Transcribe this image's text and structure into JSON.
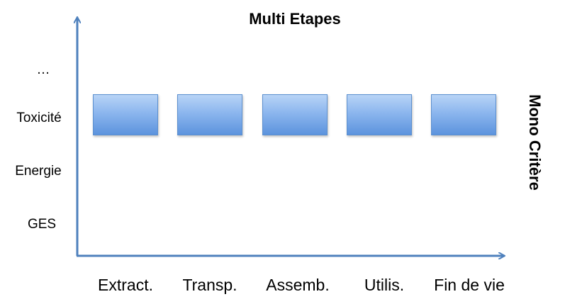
{
  "title": "Multi Etapes",
  "side_label": "Mono Critère",
  "criteria": [
    "…",
    "Toxicité",
    "Energie",
    "GES"
  ],
  "stages": [
    "Extract.",
    "Transp.",
    "Assemb.",
    "Utilis.",
    "Fin de vie"
  ],
  "colors": {
    "axis": "#4f81bd",
    "box_top": "#b8d4f6",
    "box_bottom": "#5c93dd",
    "box_border": "#5b8fcf"
  }
}
